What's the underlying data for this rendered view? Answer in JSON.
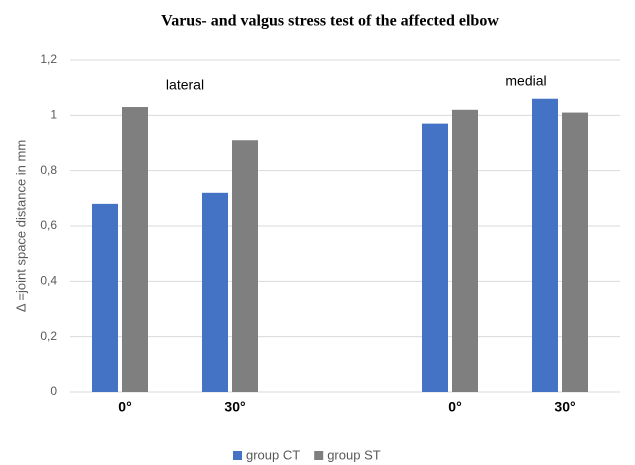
{
  "chart_data": {
    "type": "bar",
    "title": "Varus- and valgus stress test of the affected elbow",
    "y_label": "Δ =joint space distance in mm",
    "categories": [
      "0°",
      "30°",
      null,
      "0°",
      "30°"
    ],
    "series": [
      {
        "name": "group CT",
        "color": "#4472c4",
        "values": [
          0.68,
          0.72,
          null,
          0.97,
          1.06
        ]
      },
      {
        "name": "group ST",
        "color": "#7f7f7f",
        "values": [
          1.03,
          0.91,
          null,
          1.02,
          1.01
        ]
      }
    ],
    "annotations": [
      "lateral",
      "medial"
    ],
    "ylim": [
      0,
      1.2
    ],
    "yticks": [
      0,
      {
        "value": 0.2,
        "label": "0,2"
      },
      {
        "value": 0.4,
        "label": "0,4"
      },
      {
        "value": 0.6,
        "label": "0,6"
      },
      {
        "value": 0.8,
        "label": "0,8"
      },
      1,
      {
        "value": 1.2,
        "label": "1,2"
      }
    ],
    "grid": true,
    "legend": "bottom"
  }
}
